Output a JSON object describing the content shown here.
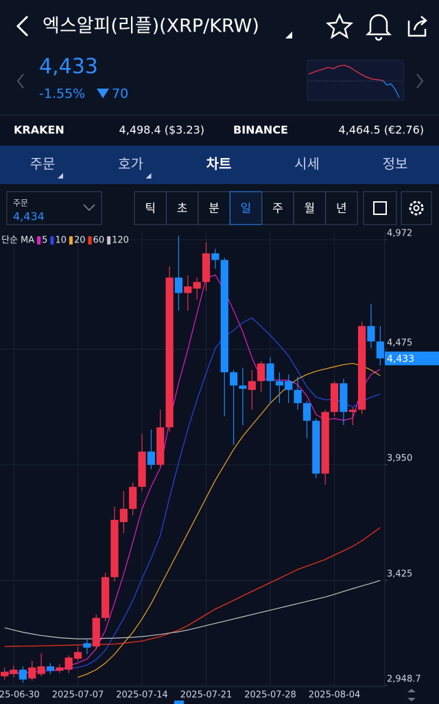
{
  "header": {
    "title": "엑스알피(리플)(XRP/KRW)",
    "price": "4,433",
    "change_pct": "-1.55%",
    "change": "70"
  },
  "exchanges": [
    {
      "name": "KRAKEN",
      "value": "4,498.4 ($3.23)"
    },
    {
      "name": "BINANCE",
      "value": "4,464.5 (€2.76)"
    }
  ],
  "tabs": [
    "주문",
    "호가",
    "차트",
    "시세",
    "정보"
  ],
  "order": {
    "label": "주문",
    "value": "4,434"
  },
  "periods": [
    "틱",
    "초",
    "분",
    "일",
    "주",
    "월",
    "년"
  ],
  "chart_data": {
    "type": "candlestick",
    "ma_label": "단순 MA",
    "categories": [
      null,
      "2025-06-30",
      null,
      null,
      null,
      null,
      null,
      null,
      "2025-07-07",
      null,
      null,
      null,
      null,
      null,
      null,
      "2025-07-14",
      null,
      null,
      null,
      null,
      null,
      null,
      "2025-07-21",
      null,
      null,
      null,
      null,
      null,
      null,
      "2025-07-28",
      null,
      null,
      null,
      null,
      null,
      null,
      "2025-08-04",
      null,
      null,
      null,
      null,
      null
    ],
    "open": [
      2990,
      3000,
      3020,
      2980,
      3000,
      3035,
      3015,
      3020,
      3070,
      3140,
      3125,
      3255,
      3440,
      3690,
      3750,
      3850,
      4010,
      3950,
      4120,
      4800,
      4730,
      4750,
      4780,
      4910,
      4880,
      4370,
      4310,
      4290,
      4330,
      4410,
      4330,
      4330,
      4290,
      4230,
      4150,
      3910,
      4190,
      4320,
      4190,
      4200,
      4580,
      4510
    ],
    "high": [
      3030,
      3040,
      3035,
      3060,
      3095,
      3050,
      3045,
      3085,
      3125,
      3160,
      3270,
      3460,
      3760,
      3830,
      3870,
      4090,
      4110,
      4200,
      4850,
      4990,
      4810,
      4800,
      4960,
      4930,
      4890,
      4380,
      4390,
      4380,
      4420,
      4440,
      4370,
      4360,
      4350,
      4240,
      4160,
      4200,
      4330,
      4340,
      4210,
      4600,
      4680,
      4580
    ],
    "low": [
      2975,
      2985,
      2960,
      2970,
      2990,
      3000,
      3005,
      3005,
      3060,
      3090,
      3110,
      3240,
      3420,
      3640,
      3720,
      3830,
      3930,
      3940,
      4100,
      4650,
      4650,
      4700,
      4740,
      4840,
      4170,
      4040,
      4130,
      4200,
      4280,
      4230,
      4230,
      4230,
      4200,
      4070,
      3890,
      3860,
      4170,
      4130,
      4130,
      4180,
      4480,
      4400
    ],
    "close": [
      3010,
      3020,
      2975,
      3030,
      3035,
      3015,
      3030,
      3075,
      3100,
      3120,
      3255,
      3440,
      3700,
      3750,
      3850,
      4010,
      3950,
      4120,
      4800,
      4730,
      4760,
      4780,
      4910,
      4880,
      4370,
      4310,
      4295,
      4330,
      4410,
      4330,
      4310,
      4290,
      4230,
      4150,
      3910,
      4190,
      4320,
      4190,
      4200,
      4580,
      4510,
      4433
    ],
    "up_color": "#f0304a",
    "down_color": "#1a8cff",
    "series": [
      {
        "name": "5",
        "color": "#e81fc4",
        "values": [
          3000,
          3005,
          3000,
          3010,
          3014,
          3015,
          3017,
          3037,
          3051,
          3068,
          3116,
          3198,
          3323,
          3453,
          3599,
          3750,
          3852,
          3936,
          4146,
          4322,
          4472,
          4638,
          4796,
          4812,
          4740,
          4650,
          4553,
          4437,
          4343,
          4335,
          4335,
          4334,
          4314,
          4262,
          4178,
          4154,
          4160,
          4152,
          4162,
          4296,
          4360,
          4383
        ]
      },
      {
        "name": "10",
        "color": "#2a46e6",
        "values": [
          3010,
          3010,
          3005,
          3010,
          3015,
          3015,
          3020,
          3025,
          3030,
          3041,
          3066,
          3108,
          3180,
          3252,
          3334,
          3433,
          3525,
          3630,
          3800,
          3961,
          4111,
          4245,
          4366,
          4479,
          4531,
          4561,
          4596,
          4617,
          4578,
          4538,
          4493,
          4444,
          4376,
          4303,
          4257,
          4245,
          4247,
          4233,
          4212,
          4237,
          4257,
          4271
        ]
      },
      {
        "name": "20",
        "color": "#f5a623",
        "values": [
          null,
          null,
          null,
          null,
          null,
          null,
          null,
          null,
          2985,
          3000,
          3020,
          3050,
          3090,
          3140,
          3190,
          3250,
          3320,
          3400,
          3480,
          3560,
          3640,
          3720,
          3800,
          3880,
          3950,
          4020,
          4080,
          4130,
          4180,
          4230,
          4270,
          4310,
          4340,
          4360,
          4375,
          4385,
          4395,
          4405,
          4410,
          4400,
          4380,
          4355
        ]
      },
      {
        "name": "60",
        "color": "#ff3318",
        "values": [
          3125,
          3126,
          3127,
          3127,
          3128,
          3129,
          3130,
          3131,
          3132,
          3133,
          3134,
          3135,
          3136,
          3140,
          3145,
          3150,
          3160,
          3170,
          3185,
          3200,
          3220,
          3245,
          3270,
          3295,
          3315,
          3335,
          3355,
          3375,
          3395,
          3415,
          3435,
          3455,
          3475,
          3490,
          3505,
          3520,
          3540,
          3560,
          3580,
          3605,
          3635,
          3665
        ]
      },
      {
        "name": "120",
        "color": "#c4c4c4",
        "values": [
          3210,
          3200,
          3190,
          3182,
          3175,
          3170,
          3165,
          3162,
          3160,
          3160,
          3160,
          3162,
          3163,
          3165,
          3167,
          3170,
          3175,
          3180,
          3186,
          3192,
          3200,
          3210,
          3220,
          3230,
          3240,
          3250,
          3260,
          3270,
          3280,
          3290,
          3300,
          3310,
          3320,
          3330,
          3340,
          3350,
          3362,
          3375,
          3388,
          3400,
          3412,
          3425
        ]
      }
    ],
    "ylim": [
      2942,
      5000
    ],
    "yticks": [
      {
        "value": 4972,
        "label": "4,972"
      },
      {
        "value": 4475,
        "label": "4,475"
      },
      {
        "value": 3950,
        "label": "3,950"
      },
      {
        "value": 3425,
        "label": "3,425"
      },
      {
        "value": 2948.7,
        "label": "2,948.7"
      }
    ],
    "last_price": {
      "value": 4433,
      "label": "4,433"
    },
    "grid": true
  }
}
